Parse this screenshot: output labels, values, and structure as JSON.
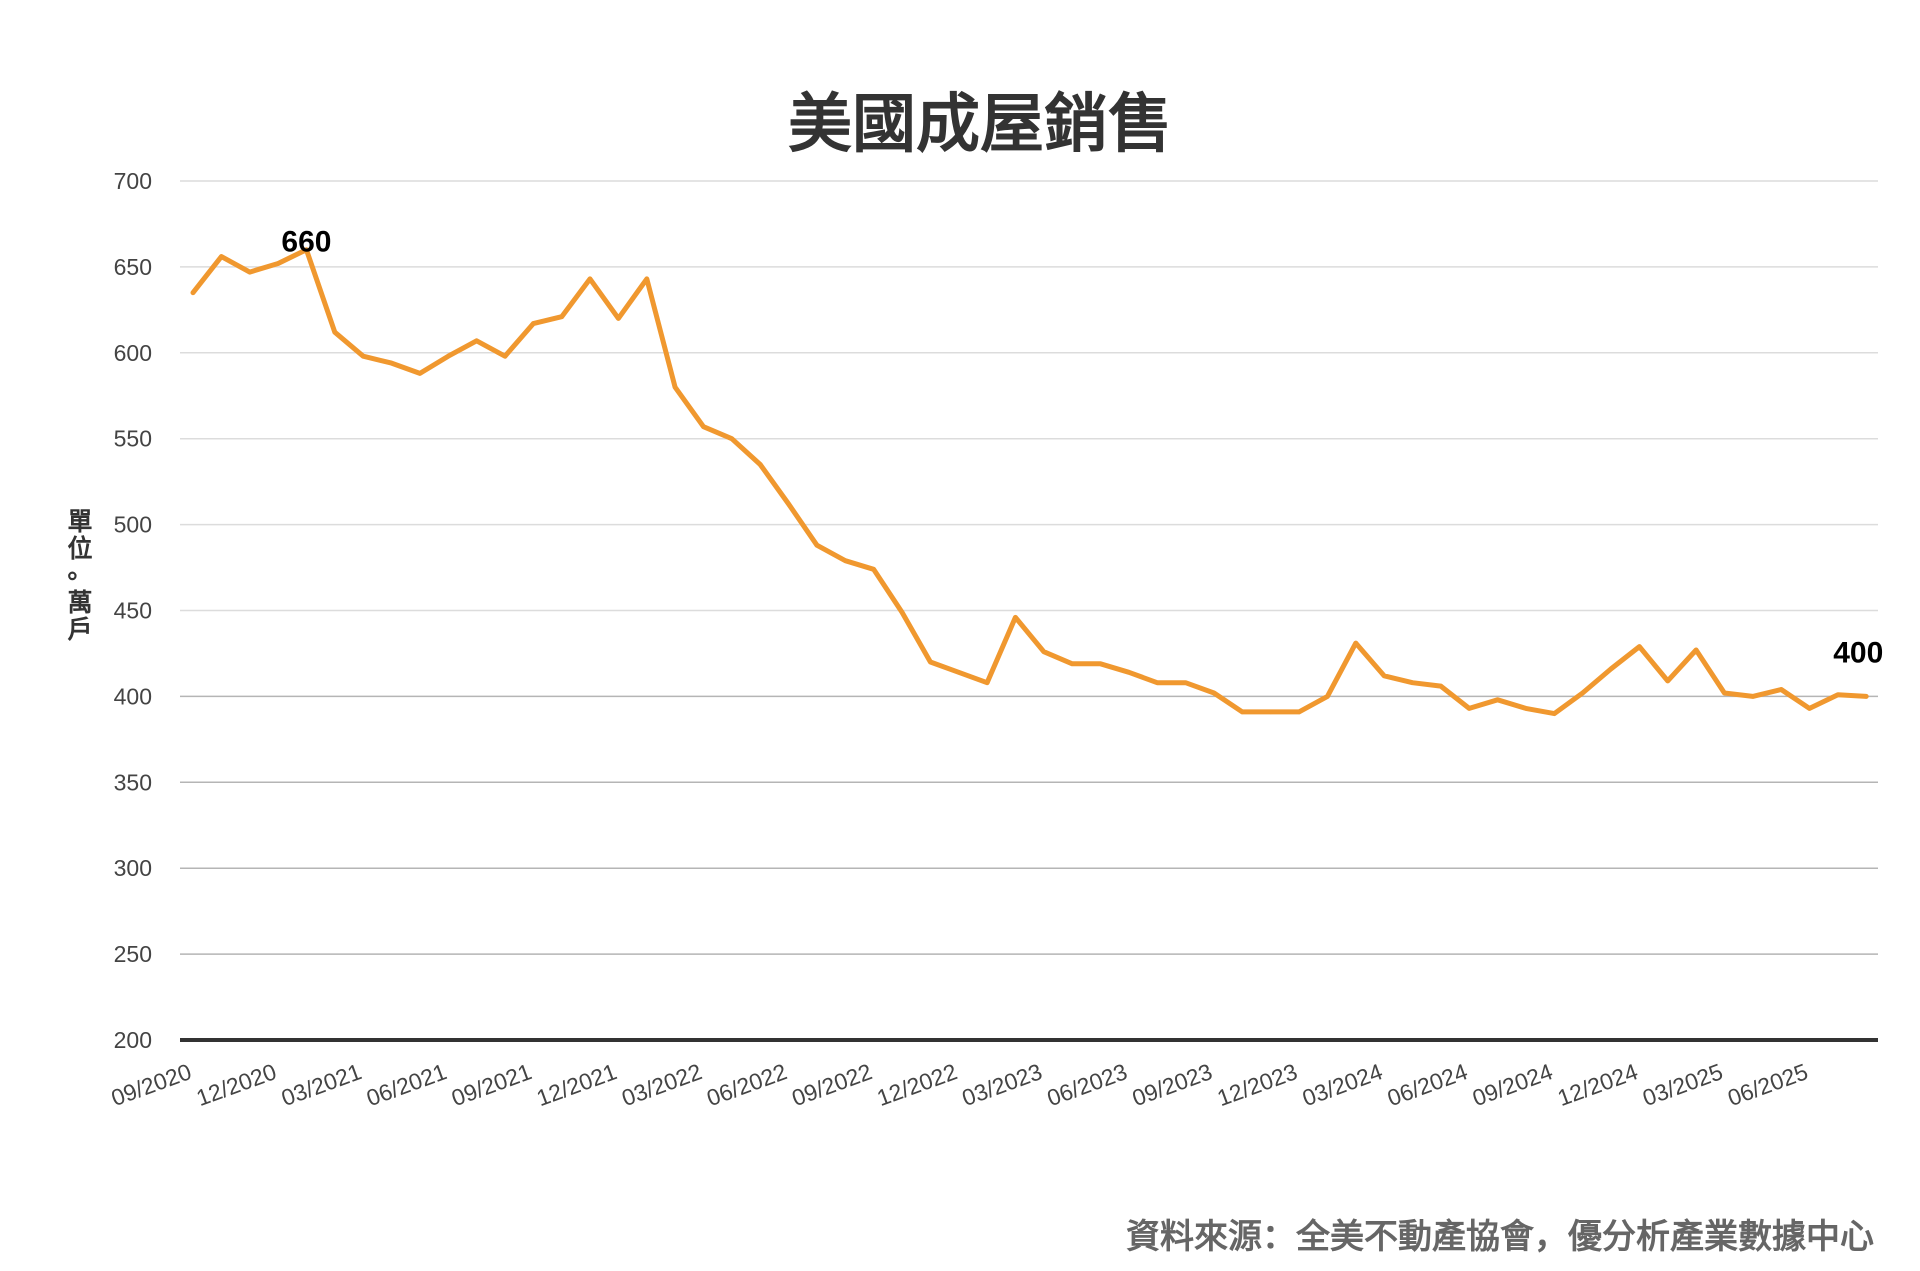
{
  "chart_data": {
    "type": "line",
    "title": "美國成屋銷售",
    "ylabel": "單位：萬戶",
    "xlabel": "",
    "ylim": [
      200,
      700
    ],
    "yticks": [
      700,
      650,
      600,
      550,
      500,
      450,
      400,
      350,
      300,
      250,
      200
    ],
    "x_tick_labels": [
      "09/2020",
      "12/2020",
      "03/2021",
      "06/2021",
      "09/2021",
      "12/2021",
      "03/2022",
      "06/2022",
      "09/2022",
      "12/2022",
      "03/2023",
      "06/2023",
      "09/2023",
      "12/2023",
      "03/2024",
      "06/2024",
      "09/2024",
      "12/2024",
      "03/2025",
      "06/2025"
    ],
    "grid": true,
    "legend": "none",
    "line_color": "#F0982F",
    "series": [
      {
        "x": [
          "09/2020",
          "10/2020",
          "11/2020",
          "12/2020",
          "01/2021",
          "02/2021",
          "03/2021",
          "04/2021",
          "05/2021",
          "06/2021",
          "07/2021",
          "08/2021",
          "09/2021",
          "10/2021",
          "11/2021",
          "12/2021",
          "01/2022",
          "02/2022",
          "03/2022",
          "04/2022",
          "05/2022",
          "06/2022",
          "07/2022",
          "08/2022",
          "09/2022",
          "10/2022",
          "11/2022",
          "12/2022",
          "01/2023",
          "02/2023",
          "03/2023",
          "04/2023",
          "05/2023",
          "06/2023",
          "07/2023",
          "08/2023",
          "09/2023",
          "10/2023",
          "11/2023",
          "12/2023",
          "01/2024",
          "02/2024",
          "03/2024",
          "04/2024",
          "05/2024",
          "06/2024",
          "07/2024",
          "08/2024",
          "09/2024",
          "10/2024",
          "11/2024",
          "12/2024",
          "01/2025",
          "02/2025",
          "03/2025",
          "04/2025",
          "05/2025",
          "06/2025",
          "07/2025",
          "08/2025"
        ],
        "values": [
          635,
          656,
          647,
          652,
          660,
          612,
          598,
          594,
          588,
          598,
          607,
          598,
          617,
          621,
          643,
          620,
          643,
          580,
          557,
          550,
          535,
          512,
          488,
          479,
          474,
          449,
          420,
          414,
          408,
          446,
          426,
          419,
          419,
          414,
          408,
          408,
          402,
          391,
          391,
          391,
          400,
          431,
          412,
          408,
          406,
          393,
          398,
          393,
          390,
          402,
          416,
          429,
          409,
          427,
          402,
          400,
          404,
          393,
          401,
          400
        ]
      }
    ],
    "annotations": [
      {
        "x": "01/2021",
        "text": "660"
      },
      {
        "x": "08/2025",
        "text": "400"
      }
    ]
  },
  "source_text": "資料來源：全美不動產協會，優分析產業數據中心"
}
